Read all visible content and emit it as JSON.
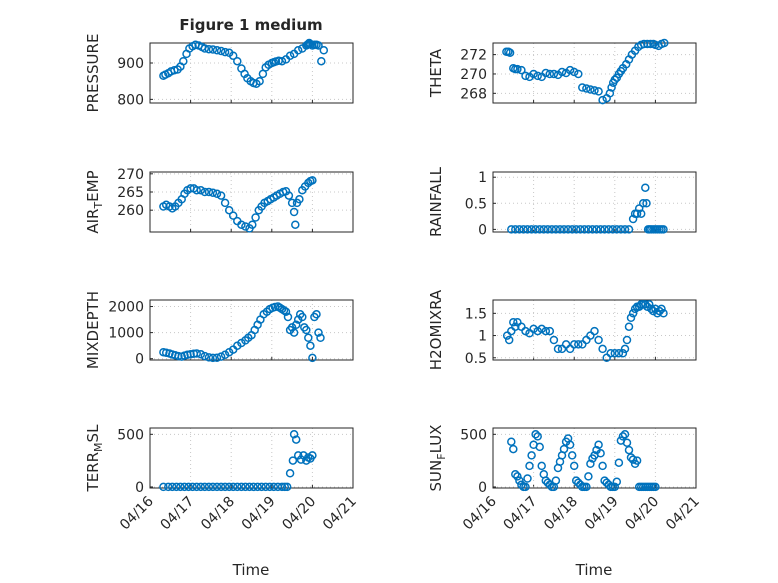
{
  "figure": {
    "title": "Figure 1 medium",
    "marker_color": "#0072bd",
    "x_tick_labels": [
      "04/16",
      "04/17",
      "04/18",
      "04/19",
      "04/20",
      "04/21"
    ],
    "x_label": "Time"
  },
  "chart_data": [
    {
      "type": "scatter",
      "title": "Figure 1 medium",
      "ylabel": "PRESSURE",
      "xlim": [
        "04/16",
        "04/21"
      ],
      "ylim": [
        790,
        955
      ],
      "yticks": [
        800,
        900
      ],
      "grid": true,
      "x": [
        0.33,
        0.38,
        0.45,
        0.52,
        0.6,
        0.68,
        0.75,
        0.82,
        0.9,
        0.97,
        1.05,
        1.12,
        1.2,
        1.28,
        1.35,
        1.45,
        1.55,
        1.65,
        1.75,
        1.85,
        1.95,
        2.05,
        2.15,
        2.25,
        2.33,
        2.4,
        2.48,
        2.55,
        2.62,
        2.7,
        2.78,
        2.85,
        2.92,
        3.0,
        3.05,
        3.1,
        3.17,
        3.25,
        3.35,
        3.45,
        3.55,
        3.65,
        3.75,
        3.85,
        3.88,
        3.9,
        3.92,
        3.95,
        4.0,
        4.05,
        4.1,
        4.15,
        4.22,
        4.28
      ],
      "y": [
        865,
        868,
        872,
        877,
        880,
        882,
        890,
        905,
        925,
        940,
        946,
        950,
        948,
        944,
        940,
        938,
        937,
        935,
        933,
        930,
        928,
        920,
        905,
        885,
        870,
        858,
        850,
        845,
        843,
        850,
        870,
        888,
        895,
        900,
        902,
        904,
        906,
        905,
        910,
        920,
        925,
        935,
        940,
        948,
        950,
        952,
        955,
        952,
        948,
        950,
        950,
        948,
        905,
        935
      ]
    },
    {
      "type": "scatter",
      "ylabel": "THETA",
      "xlim": [
        "04/16",
        "04/21"
      ],
      "ylim": [
        267,
        273.2
      ],
      "yticks": [
        268,
        270,
        272
      ],
      "grid": true,
      "x": [
        0.33,
        0.38,
        0.42,
        0.5,
        0.55,
        0.6,
        0.7,
        0.8,
        0.9,
        1.0,
        1.1,
        1.2,
        1.3,
        1.4,
        1.5,
        1.6,
        1.7,
        1.8,
        1.9,
        2.0,
        2.1,
        2.2,
        2.3,
        2.4,
        2.5,
        2.6,
        2.7,
        2.8,
        2.88,
        2.92,
        2.96,
        3.0,
        3.05,
        3.1,
        3.15,
        3.2,
        3.28,
        3.35,
        3.42,
        3.5,
        3.58,
        3.65,
        3.72,
        3.8,
        3.88,
        3.95,
        4.0,
        4.08,
        4.15,
        4.22
      ],
      "y": [
        272.3,
        272.3,
        272.2,
        270.6,
        270.5,
        270.5,
        270.4,
        269.8,
        269.7,
        270.0,
        269.8,
        269.7,
        270.1,
        270.0,
        270.0,
        269.9,
        270.2,
        270.1,
        270.4,
        270.2,
        270.0,
        268.6,
        268.5,
        268.4,
        268.3,
        268.2,
        267.3,
        267.5,
        268.0,
        268.6,
        269.1,
        269.4,
        269.6,
        270.0,
        270.3,
        270.6,
        271.0,
        271.5,
        272.0,
        272.4,
        272.8,
        273.0,
        273.1,
        273.1,
        273.1,
        273.1,
        273.0,
        272.9,
        273.1,
        273.2
      ]
    },
    {
      "type": "scatter",
      "ylabel": "AIR_TEMP",
      "xlim": [
        "04/16",
        "04/21"
      ],
      "ylim": [
        254,
        270.5
      ],
      "yticks": [
        260,
        265,
        270
      ],
      "grid": true,
      "x": [
        0.33,
        0.4,
        0.48,
        0.55,
        0.62,
        0.7,
        0.78,
        0.85,
        0.92,
        1.0,
        1.08,
        1.15,
        1.25,
        1.35,
        1.45,
        1.55,
        1.65,
        1.75,
        1.85,
        1.95,
        2.05,
        2.15,
        2.25,
        2.35,
        2.45,
        2.52,
        2.6,
        2.68,
        2.75,
        2.82,
        2.9,
        2.97,
        3.05,
        3.12,
        3.2,
        3.28,
        3.35,
        3.42,
        3.5,
        3.55,
        3.58,
        3.62,
        3.68,
        3.75,
        3.82,
        3.9,
        3.95,
        4.0
      ],
      "y": [
        261,
        261.5,
        261,
        260.5,
        261,
        262,
        263,
        264.5,
        265.5,
        266,
        266,
        265.5,
        265.5,
        265,
        265,
        264.8,
        264.5,
        264,
        262,
        260,
        258.5,
        257,
        256,
        255.5,
        255,
        256,
        258,
        260,
        261,
        262,
        262.5,
        263,
        263.5,
        264,
        264.5,
        265,
        265.2,
        264,
        262,
        259.5,
        256,
        262,
        263,
        265.5,
        266.5,
        267.5,
        268,
        268.2
      ]
    },
    {
      "type": "scatter",
      "ylabel": "RAINFALL",
      "xlim": [
        "04/16",
        "04/21"
      ],
      "ylim": [
        -0.05,
        1.1
      ],
      "yticks": [
        0,
        0.5,
        1
      ],
      "grid": true,
      "x": [
        0.45,
        0.55,
        0.65,
        0.75,
        0.85,
        0.95,
        1.05,
        1.15,
        1.25,
        1.35,
        1.45,
        1.55,
        1.65,
        1.75,
        1.85,
        1.95,
        2.05,
        2.15,
        2.25,
        2.35,
        2.45,
        2.55,
        2.65,
        2.75,
        2.85,
        2.95,
        3.05,
        3.15,
        3.25,
        3.35,
        3.45,
        3.5,
        3.55,
        3.6,
        3.65,
        3.7,
        3.75,
        3.78,
        3.82,
        3.86,
        3.9,
        3.95,
        4.0,
        4.05,
        4.1,
        4.15,
        4.2
      ],
      "y": [
        0,
        0,
        0,
        0,
        0,
        0,
        0,
        0,
        0,
        0,
        0,
        0,
        0,
        0,
        0,
        0,
        0,
        0,
        0,
        0,
        0,
        0,
        0,
        0,
        0,
        0,
        0,
        0,
        0,
        0,
        0.2,
        0.3,
        0.3,
        0.4,
        0.3,
        0.5,
        0.8,
        0.5,
        0,
        0,
        0,
        0,
        0,
        0,
        0,
        0,
        0
      ]
    },
    {
      "type": "scatter",
      "ylabel": "MIXDEPTH",
      "xlim": [
        "04/16",
        "04/21"
      ],
      "ylim": [
        -50,
        2250
      ],
      "yticks": [
        0,
        1000,
        2000
      ],
      "grid": true,
      "x": [
        0.33,
        0.4,
        0.48,
        0.55,
        0.62,
        0.7,
        0.78,
        0.85,
        0.92,
        1.0,
        1.08,
        1.15,
        1.25,
        1.35,
        1.45,
        1.55,
        1.65,
        1.75,
        1.85,
        1.95,
        2.05,
        2.15,
        2.25,
        2.35,
        2.42,
        2.5,
        2.58,
        2.65,
        2.72,
        2.8,
        2.88,
        2.95,
        3.02,
        3.08,
        3.15,
        3.2,
        3.25,
        3.3,
        3.35,
        3.4,
        3.45,
        3.5,
        3.55,
        3.6,
        3.65,
        3.7,
        3.75,
        3.8,
        3.85,
        3.9,
        3.95,
        4.0,
        4.05,
        4.1,
        4.15,
        4.2
      ],
      "y": [
        250,
        230,
        200,
        160,
        130,
        100,
        80,
        120,
        150,
        170,
        190,
        200,
        170,
        100,
        50,
        30,
        40,
        80,
        150,
        250,
        350,
        500,
        600,
        700,
        800,
        900,
        1100,
        1300,
        1500,
        1700,
        1800,
        1900,
        1950,
        1980,
        2000,
        1950,
        1900,
        1850,
        1800,
        1600,
        1100,
        1200,
        1000,
        1300,
        1500,
        1700,
        1600,
        1200,
        1100,
        800,
        500,
        30,
        1600,
        1700,
        1000,
        800
      ]
    },
    {
      "type": "scatter",
      "ylabel": "H2OMIXRA",
      "xlim": [
        "04/16",
        "04/21"
      ],
      "ylim": [
        0.45,
        1.8
      ],
      "yticks": [
        0.5,
        1,
        1.5
      ],
      "grid": true,
      "x": [
        0.35,
        0.4,
        0.45,
        0.5,
        0.55,
        0.6,
        0.7,
        0.8,
        0.9,
        1.0,
        1.1,
        1.2,
        1.3,
        1.4,
        1.5,
        1.6,
        1.7,
        1.8,
        1.9,
        2.0,
        2.1,
        2.2,
        2.3,
        2.4,
        2.5,
        2.6,
        2.7,
        2.8,
        2.9,
        3.0,
        3.1,
        3.2,
        3.25,
        3.3,
        3.35,
        3.4,
        3.45,
        3.5,
        3.55,
        3.6,
        3.65,
        3.7,
        3.75,
        3.8,
        3.85,
        3.9,
        3.95,
        4.0,
        4.05,
        4.1,
        4.15,
        4.2
      ],
      "y": [
        1.0,
        0.9,
        1.1,
        1.3,
        1.2,
        1.3,
        1.2,
        1.1,
        1.05,
        1.15,
        1.1,
        1.15,
        1.1,
        1.1,
        0.9,
        0.7,
        0.7,
        0.8,
        0.7,
        0.8,
        0.8,
        0.8,
        0.9,
        1.0,
        1.1,
        0.9,
        0.7,
        0.5,
        0.6,
        0.6,
        0.6,
        0.6,
        0.7,
        0.9,
        1.2,
        1.4,
        1.5,
        1.6,
        1.65,
        1.65,
        1.7,
        1.7,
        1.7,
        1.65,
        1.7,
        1.6,
        1.55,
        1.6,
        1.5,
        1.55,
        1.6,
        1.5
      ]
    },
    {
      "type": "scatter",
      "ylabel": "TERR_MSL",
      "xlim": [
        "04/16",
        "04/21"
      ],
      "ylim": [
        -10,
        560
      ],
      "yticks": [
        0,
        500
      ],
      "grid": true,
      "x": [
        0.33,
        0.45,
        0.55,
        0.65,
        0.75,
        0.85,
        0.95,
        1.05,
        1.15,
        1.25,
        1.35,
        1.45,
        1.55,
        1.65,
        1.75,
        1.85,
        1.95,
        2.05,
        2.15,
        2.25,
        2.35,
        2.45,
        2.55,
        2.65,
        2.75,
        2.85,
        2.95,
        3.05,
        3.15,
        3.25,
        3.32,
        3.38,
        3.45,
        3.52,
        3.55,
        3.6,
        3.65,
        3.72,
        3.78,
        3.85,
        3.9,
        3.95,
        4.0
      ],
      "y": [
        0,
        0,
        0,
        0,
        0,
        0,
        0,
        0,
        0,
        0,
        0,
        0,
        0,
        0,
        0,
        0,
        0,
        0,
        0,
        0,
        0,
        0,
        0,
        0,
        0,
        0,
        0,
        0,
        0,
        0,
        0,
        0,
        130,
        250,
        500,
        450,
        300,
        260,
        300,
        250,
        280,
        270,
        300
      ]
    },
    {
      "type": "scatter",
      "ylabel": "SUN_FLUX",
      "xlim": [
        "04/16",
        "04/21"
      ],
      "ylim": [
        -10,
        560
      ],
      "yticks": [
        0,
        500
      ],
      "grid": true,
      "x": [
        0.45,
        0.5,
        0.55,
        0.6,
        0.65,
        0.7,
        0.75,
        0.8,
        0.85,
        0.9,
        0.95,
        1.0,
        1.05,
        1.1,
        1.15,
        1.2,
        1.25,
        1.3,
        1.35,
        1.4,
        1.45,
        1.5,
        1.55,
        1.6,
        1.65,
        1.7,
        1.75,
        1.8,
        1.85,
        1.9,
        1.95,
        2.0,
        2.05,
        2.1,
        2.15,
        2.2,
        2.25,
        2.3,
        2.35,
        2.4,
        2.45,
        2.5,
        2.55,
        2.6,
        2.65,
        2.7,
        2.75,
        2.8,
        2.85,
        2.9,
        2.95,
        3.0,
        3.05,
        3.1,
        3.15,
        3.2,
        3.25,
        3.3,
        3.35,
        3.4,
        3.45,
        3.5,
        3.55,
        3.6,
        3.65,
        3.7,
        3.75,
        3.8,
        3.85,
        3.9,
        3.95,
        4.0
      ],
      "y": [
        430,
        360,
        120,
        100,
        60,
        20,
        0,
        0,
        80,
        200,
        300,
        400,
        500,
        480,
        380,
        200,
        120,
        60,
        40,
        20,
        0,
        0,
        60,
        180,
        240,
        300,
        360,
        430,
        460,
        400,
        300,
        200,
        60,
        40,
        20,
        0,
        0,
        0,
        100,
        220,
        270,
        300,
        350,
        400,
        320,
        200,
        60,
        40,
        20,
        0,
        0,
        0,
        50,
        230,
        440,
        480,
        500,
        420,
        350,
        280,
        260,
        220,
        250,
        0,
        0,
        0,
        0,
        0,
        0,
        0,
        0,
        0
      ]
    }
  ]
}
